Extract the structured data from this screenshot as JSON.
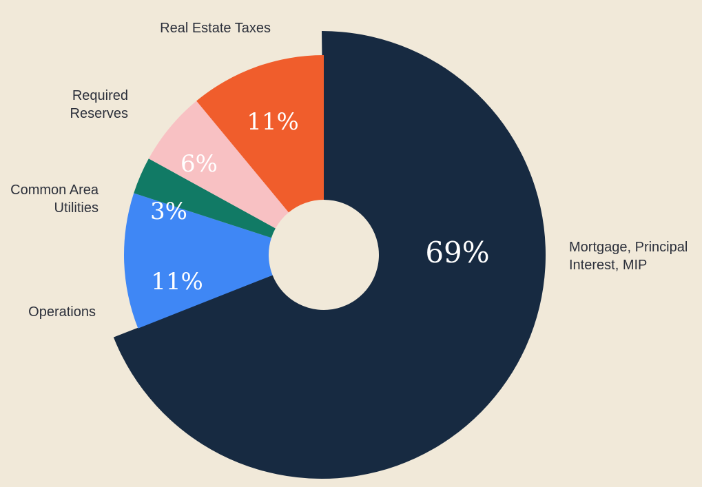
{
  "chart_data": {
    "type": "pie",
    "donut": true,
    "categories": [
      "Mortgage, Principal Interest, MIP",
      "Operations",
      "Common Area Utilities",
      "Required Reserves",
      "Real Estate Taxes"
    ],
    "values": [
      69,
      11,
      3,
      6,
      11
    ],
    "value_labels": [
      "69%",
      "11%",
      "3%",
      "6%",
      "11%"
    ],
    "label_lines": [
      [
        "Mortgage, Principal",
        "Interest, MIP"
      ],
      [
        "Operations"
      ],
      [
        "Common Area",
        "Utilities"
      ],
      [
        "Required",
        "Reserves"
      ],
      [
        "Real Estate Taxes"
      ]
    ],
    "colors": [
      "#172a41",
      "#3f87f5",
      "#117a65",
      "#f8c1c3",
      "#f05d2c"
    ],
    "background": "#f1e9d9",
    "exploded_slice": "Mortgage, Principal Interest, MIP",
    "legend": "none",
    "start": "12 o'clock",
    "direction": "clockwise"
  }
}
